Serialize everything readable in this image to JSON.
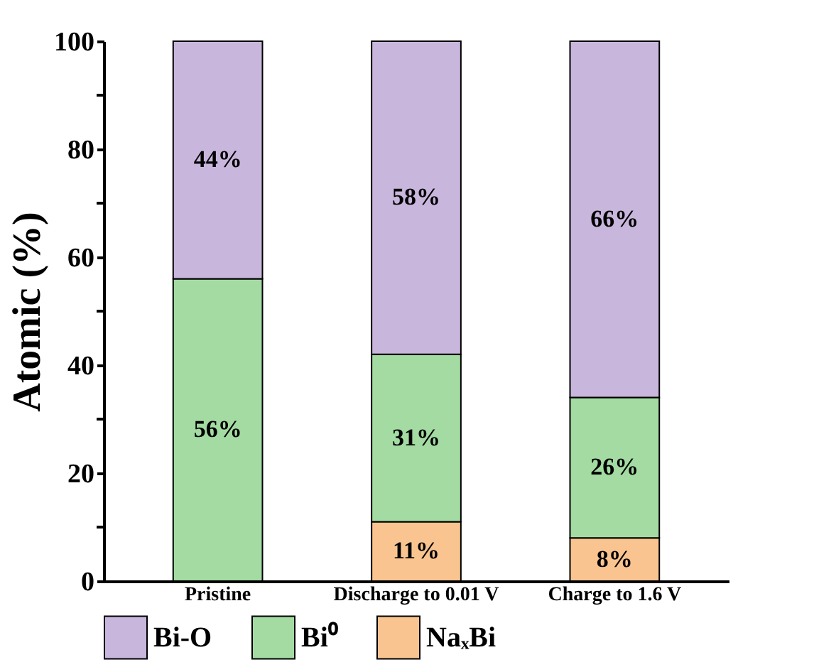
{
  "chart_data": {
    "type": "bar",
    "stacked": true,
    "ylabel": "Atomic (%)",
    "categories": [
      "Pristine",
      "Discharge to 0.01 V",
      "Charge to 1.6 V"
    ],
    "series": [
      {
        "name": "NaₓBi",
        "color": "#f9c48f",
        "values": [
          0,
          11,
          8
        ],
        "value_labels": [
          null,
          "11%",
          "8%"
        ]
      },
      {
        "name": "Bi⁰",
        "color": "#a3dba2",
        "values": [
          56,
          31,
          26
        ],
        "value_labels": [
          "56%",
          "31%",
          "26%"
        ]
      },
      {
        "name": "Bi-O",
        "color": "#c8b6dc",
        "values": [
          44,
          58,
          66
        ],
        "value_labels": [
          "44%",
          "58%",
          "66%"
        ]
      }
    ],
    "ylim": [
      0,
      100
    ],
    "yticks": [
      0,
      {
        "value": 10,
        "label": null
      },
      20,
      {
        "value": 30,
        "label": null
      },
      40,
      {
        "value": 50,
        "label": null
      },
      60,
      {
        "value": 70,
        "label": null
      },
      80,
      {
        "value": 90,
        "label": null
      },
      100
    ],
    "grid": false,
    "legend": "bottom"
  }
}
